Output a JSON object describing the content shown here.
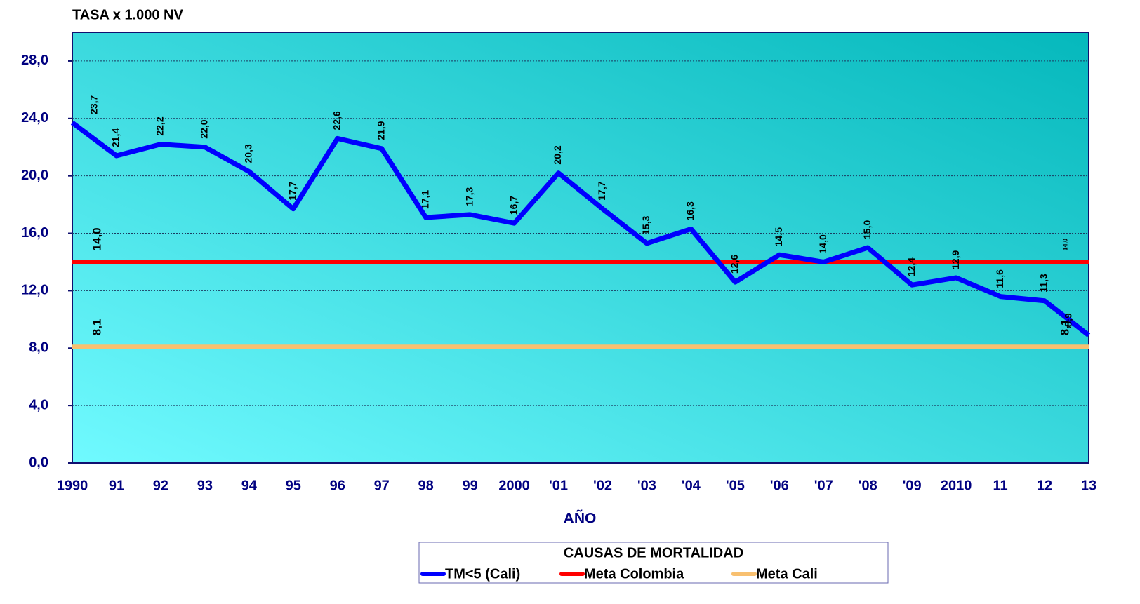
{
  "chart_data": {
    "type": "line",
    "title": "TASA x 1.000 NV",
    "x_label": "AÑO",
    "legend_title": "CAUSAS DE MORTALIDAD",
    "categories": [
      "1990",
      "91",
      "92",
      "93",
      "94",
      "95",
      "96",
      "97",
      "98",
      "99",
      "2000",
      "'01",
      "'02",
      "'03",
      "'04",
      "'05",
      "'06",
      "'07",
      "'08",
      "'09",
      "2010",
      "11",
      "12",
      "13"
    ],
    "series": [
      {
        "name": "TM<5 (Cali)",
        "color": "#0000ff",
        "values": [
          23.7,
          21.4,
          22.2,
          22.0,
          20.3,
          17.7,
          22.6,
          21.9,
          17.1,
          17.3,
          16.7,
          20.2,
          17.7,
          15.3,
          16.3,
          12.6,
          14.5,
          14.0,
          15.0,
          12.4,
          12.9,
          11.6,
          11.3,
          8.9
        ],
        "value_labels": [
          "23,7",
          "21,4",
          "22,2",
          "22,0",
          "20,3",
          "17,7",
          "22,6",
          "21,9",
          "17,1",
          "17,3",
          "16,7",
          "20,2",
          "17,7",
          "15,3",
          "16,3",
          "12,6",
          "14,5",
          "14,0",
          "15,0",
          "12,4",
          "12,9",
          "11,6",
          "11,3",
          "8,9"
        ]
      },
      {
        "name": "Meta Colombia",
        "color": "#ff0000",
        "values": [
          14.0,
          14.0,
          14.0,
          14.0,
          14.0,
          14.0,
          14.0,
          14.0,
          14.0,
          14.0,
          14.0,
          14.0,
          14.0,
          14.0,
          14.0,
          14.0,
          14.0,
          14.0,
          14.0,
          14.0,
          14.0,
          14.0,
          14.0,
          14.0
        ],
        "value_labels": [
          "14,0",
          null,
          null,
          null,
          null,
          null,
          null,
          null,
          null,
          null,
          null,
          null,
          null,
          null,
          null,
          null,
          null,
          null,
          null,
          null,
          null,
          null,
          null,
          "14,0"
        ]
      },
      {
        "name": "Meta Cali",
        "color": "#f8c070",
        "values": [
          8.1,
          8.1,
          8.1,
          8.1,
          8.1,
          8.1,
          8.1,
          8.1,
          8.1,
          8.1,
          8.1,
          8.1,
          8.1,
          8.1,
          8.1,
          8.1,
          8.1,
          8.1,
          8.1,
          8.1,
          8.1,
          8.1,
          8.1,
          8.1
        ],
        "value_labels": [
          "8,1",
          null,
          null,
          null,
          null,
          null,
          null,
          null,
          null,
          null,
          null,
          null,
          null,
          null,
          null,
          null,
          null,
          null,
          null,
          null,
          null,
          null,
          null,
          "8,1"
        ]
      }
    ],
    "ylim": [
      0,
      30
    ],
    "yticks": [
      {
        "value": 0,
        "label": "0,0"
      },
      {
        "value": 4,
        "label": "4,0"
      },
      {
        "value": 8,
        "label": "8,0"
      },
      {
        "value": 12,
        "label": "12,0"
      },
      {
        "value": 16,
        "label": "16,0"
      },
      {
        "value": 20,
        "label": "20,0"
      },
      {
        "value": 24,
        "label": "24,0"
      },
      {
        "value": 28,
        "label": "28,0"
      }
    ],
    "grid": true
  }
}
